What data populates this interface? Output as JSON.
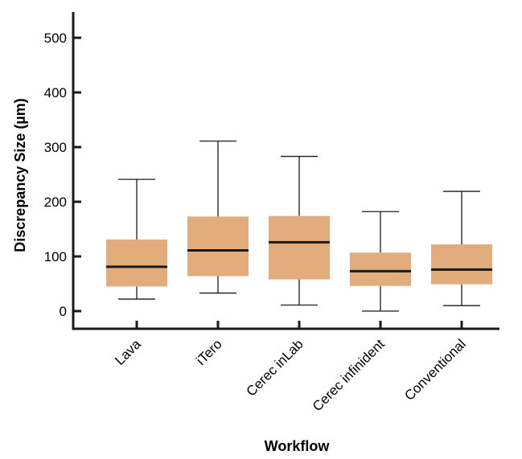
{
  "chart_data": {
    "type": "box",
    "title": "",
    "xlabel": "Workflow",
    "ylabel": "Discrepancy Size (µm)",
    "ylim": [
      -30,
      550
    ],
    "yticks": [
      0,
      100,
      200,
      300,
      400,
      500
    ],
    "categories": [
      "Lava",
      "iTero",
      "Cerec inLab",
      "Cerec infinident",
      "Conventional"
    ],
    "boxes": [
      {
        "min": 22,
        "q1": 45,
        "median": 81,
        "q3": 131,
        "max": 241
      },
      {
        "min": 33,
        "q1": 64,
        "median": 111,
        "q3": 173,
        "max": 311
      },
      {
        "min": 11,
        "q1": 58,
        "median": 126,
        "q3": 174,
        "max": 283
      },
      {
        "min": 0,
        "q1": 46,
        "median": 73,
        "q3": 107,
        "max": 182
      },
      {
        "min": 10,
        "q1": 49,
        "median": 76,
        "q3": 122,
        "max": 219
      }
    ],
    "colors": {
      "box_fill": "#E3AC7C",
      "median": "#1a1a1a",
      "axis": "#1a1a1a",
      "whisker": "#1a1a1a"
    },
    "grid": false,
    "legend": "none"
  }
}
